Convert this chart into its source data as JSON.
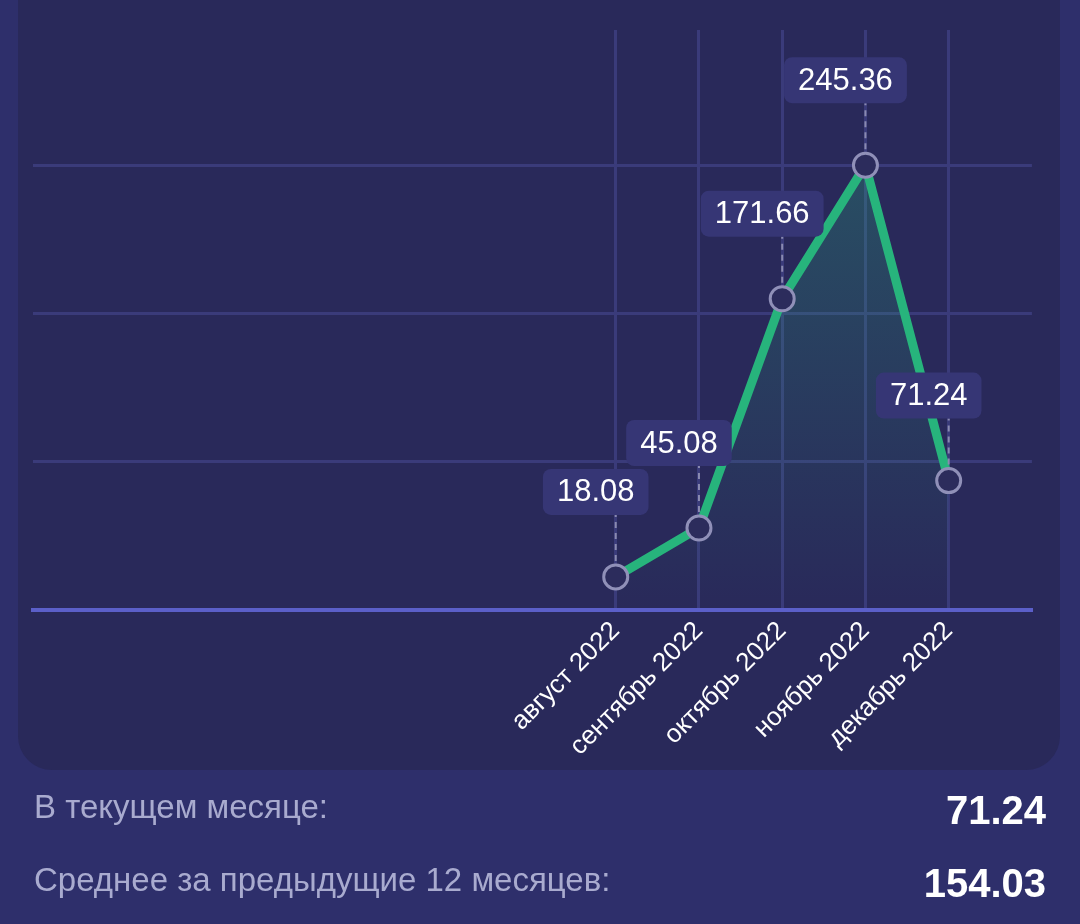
{
  "chart_data": {
    "type": "area",
    "categories": [
      null,
      null,
      null,
      null,
      null,
      null,
      null,
      "август 2022",
      "сентябрь 2022",
      "октябрь 2022",
      "ноябрь 2022",
      "декабрь 2022",
      null
    ],
    "series": [
      {
        "color": "#27b47c",
        "values": [
          null,
          null,
          null,
          null,
          null,
          null,
          null,
          18.08,
          45.08,
          171.66,
          245.36,
          71.24,
          null
        ]
      }
    ],
    "ylim": [
      0,
      320
    ],
    "yticks": [
      {
        "value": 0,
        "label": null
      },
      {
        "value": 81.8,
        "label": null
      },
      {
        "value": 163.6,
        "label": null
      },
      {
        "value": 245.4,
        "label": null
      }
    ],
    "tick_labels": "x",
    "grid": true,
    "marker": "circle",
    "line_style": "solid",
    "data_labels": true,
    "legend": false,
    "annotations": [
      "В текущем месяце:",
      "71.24",
      "Среднее за предыдущие 12 месяцев:",
      "154.03"
    ]
  }
}
